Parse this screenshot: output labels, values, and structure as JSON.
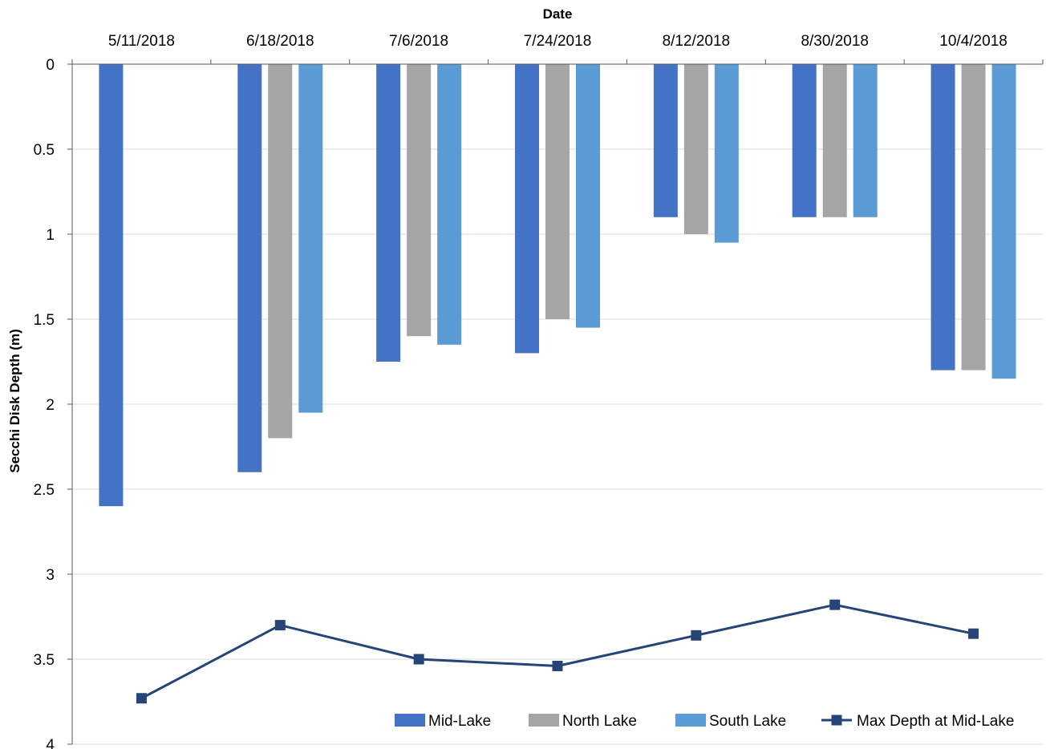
{
  "chart_data": {
    "type": "bar",
    "title": "",
    "xlabel": "Date",
    "ylabel": "Secchi Disk Depth (m)",
    "y_inverted": true,
    "ylim": [
      0,
      4
    ],
    "yticks": [
      0,
      0.5,
      1,
      1.5,
      2,
      2.5,
      3,
      3.5,
      4
    ],
    "ytick_labels": [
      "0",
      "0.5",
      "1",
      "1.5",
      "2",
      "2.5",
      "3",
      "3.5",
      "4"
    ],
    "x_axis_position": "top",
    "grid": true,
    "legend_position": "bottom-right",
    "categories": [
      "5/11/2018",
      "6/18/2018",
      "7/6/2018",
      "7/24/2018",
      "8/12/2018",
      "8/30/2018",
      "10/4/2018"
    ],
    "series": [
      {
        "name": "Mid-Lake",
        "type": "bar",
        "color": "#4472C4",
        "values": [
          2.6,
          2.4,
          1.75,
          1.7,
          0.9,
          0.9,
          1.8
        ]
      },
      {
        "name": "North Lake",
        "type": "bar",
        "color": "#A5A5A5",
        "values": [
          null,
          2.2,
          1.6,
          1.5,
          1.0,
          0.9,
          1.8
        ]
      },
      {
        "name": "South Lake",
        "type": "bar",
        "color": "#5B9BD5",
        "values": [
          null,
          2.05,
          1.65,
          1.55,
          1.05,
          0.9,
          1.85
        ]
      },
      {
        "name": "Max Depth at Mid-Lake",
        "type": "line",
        "marker": "square",
        "color": "#264478",
        "values": [
          3.73,
          3.3,
          3.5,
          3.54,
          3.36,
          3.18,
          3.35
        ]
      }
    ]
  }
}
